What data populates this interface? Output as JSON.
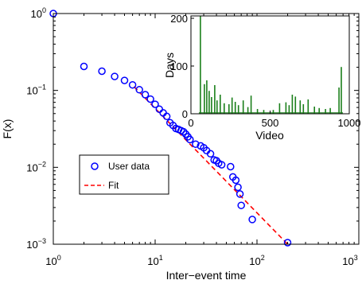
{
  "chart_data": [
    {
      "type": "scatter",
      "xlabel": "Inter−event time",
      "ylabel": "F(x)",
      "xscale": "log",
      "yscale": "log",
      "xlim": [
        1,
        1000
      ],
      "ylim": [
        0.001,
        1
      ],
      "xticks": [
        {
          "value": 1,
          "base": "10",
          "exp": "0"
        },
        {
          "value": 10,
          "base": "10",
          "exp": "1"
        },
        {
          "value": 100,
          "base": "10",
          "exp": "2"
        },
        {
          "value": 1000,
          "base": "10",
          "exp": "3"
        }
      ],
      "yticks": [
        {
          "value": 0.001,
          "base": "10",
          "exp": "−3"
        },
        {
          "value": 0.01,
          "base": "10",
          "exp": "−2"
        },
        {
          "value": 0.1,
          "base": "10",
          "exp": "−1"
        },
        {
          "value": 1,
          "base": "10",
          "exp": "0"
        }
      ],
      "grid": false,
      "legend": {
        "position": "center-left",
        "entries": [
          {
            "label": "User data",
            "marker": "circle",
            "color": "#0000ff"
          },
          {
            "label": "Fit",
            "style": "dashed",
            "color": "#ff0000"
          }
        ]
      },
      "series": [
        {
          "name": "User data",
          "marker": "circle",
          "color": "#0000ff",
          "points": [
            [
              1,
              1.0
            ],
            [
              2,
              0.205
            ],
            [
              3,
              0.178
            ],
            [
              4,
              0.152
            ],
            [
              5,
              0.135
            ],
            [
              6,
              0.118
            ],
            [
              7,
              0.102
            ],
            [
              8,
              0.088
            ],
            [
              9,
              0.077
            ],
            [
              10,
              0.066
            ],
            [
              11,
              0.057
            ],
            [
              12,
              0.051
            ],
            [
              13,
              0.046
            ],
            [
              14,
              0.038
            ],
            [
              15,
              0.035
            ],
            [
              16,
              0.032
            ],
            [
              17,
              0.031
            ],
            [
              18,
              0.03
            ],
            [
              19,
              0.029
            ],
            [
              20,
              0.027
            ],
            [
              21,
              0.025
            ],
            [
              22,
              0.023
            ],
            [
              25,
              0.02
            ],
            [
              28,
              0.019
            ],
            [
              30,
              0.018
            ],
            [
              32,
              0.0165
            ],
            [
              35,
              0.015
            ],
            [
              38,
              0.0125
            ],
            [
              40,
              0.0122
            ],
            [
              42,
              0.0113
            ],
            [
              45,
              0.0108
            ],
            [
              55,
              0.0102
            ],
            [
              58,
              0.0075
            ],
            [
              62,
              0.0068
            ],
            [
              65,
              0.0055
            ],
            [
              68,
              0.0045
            ],
            [
              70,
              0.0032
            ],
            [
              90,
              0.0021
            ],
            [
              200,
              0.00105
            ]
          ]
        },
        {
          "name": "Fit",
          "style": "dashed",
          "color": "#ff0000",
          "points": [
            [
              6.2,
              0.112
            ],
            [
              200,
              0.001
            ]
          ]
        }
      ]
    },
    {
      "type": "bar",
      "xlabel": "Video",
      "ylabel": "Days",
      "xlim": [
        0,
        1000
      ],
      "ylim": [
        0,
        205
      ],
      "xticks": [
        "0",
        "500",
        "1000"
      ],
      "yticks": [
        "0",
        "100",
        "200"
      ],
      "color": "#1a7f1a",
      "peaks": [
        [
          60,
          205
        ],
        [
          85,
          62
        ],
        [
          100,
          70
        ],
        [
          115,
          48
        ],
        [
          130,
          35
        ],
        [
          150,
          60
        ],
        [
          165,
          28
        ],
        [
          185,
          40
        ],
        [
          210,
          22
        ],
        [
          240,
          20
        ],
        [
          260,
          34
        ],
        [
          280,
          25
        ],
        [
          300,
          18
        ],
        [
          330,
          28
        ],
        [
          360,
          14
        ],
        [
          380,
          38
        ],
        [
          420,
          10
        ],
        [
          460,
          8
        ],
        [
          520,
          8
        ],
        [
          560,
          22
        ],
        [
          600,
          24
        ],
        [
          620,
          18
        ],
        [
          640,
          40
        ],
        [
          660,
          36
        ],
        [
          690,
          28
        ],
        [
          710,
          20
        ],
        [
          740,
          30
        ],
        [
          780,
          15
        ],
        [
          810,
          12
        ],
        [
          850,
          10
        ],
        [
          880,
          12
        ],
        [
          935,
          55
        ],
        [
          950,
          98
        ]
      ]
    }
  ]
}
